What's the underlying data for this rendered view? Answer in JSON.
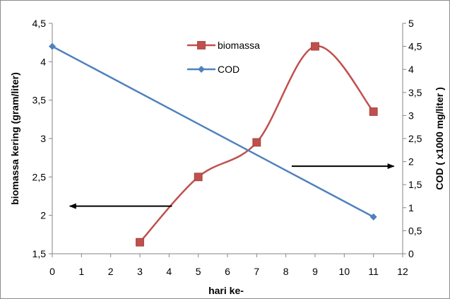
{
  "chart_data": {
    "type": "line",
    "xlabel": "hari ke-",
    "ylabel_left": "biomassa kering (gram/liter)",
    "ylabel_right": "COD ( x1000 mg/liter )",
    "x_ticks": [
      "0",
      "1",
      "2",
      "3",
      "4",
      "5",
      "6",
      "7",
      "8",
      "9",
      "10",
      "11",
      "12"
    ],
    "left_ticks": [
      "1,5",
      "2",
      "2,5",
      "3",
      "3,5",
      "4",
      "4,5"
    ],
    "right_ticks": [
      "0",
      "0,5",
      "1",
      "1,5",
      "2",
      "2,5",
      "3",
      "3,5",
      "4",
      "4,5",
      "5"
    ],
    "xlim": [
      0,
      12
    ],
    "ylim_left": [
      1.5,
      4.5
    ],
    "ylim_right": [
      0,
      5
    ],
    "legend_position": "top-center",
    "series": [
      {
        "name": "biomassa",
        "axis": "left",
        "color": "#c0504d",
        "marker": "square",
        "smooth": true,
        "x": [
          3,
          5,
          7,
          9,
          11
        ],
        "y": [
          1.65,
          2.5,
          2.95,
          4.2,
          3.35
        ]
      },
      {
        "name": "COD",
        "axis": "right",
        "color": "#4f81bd",
        "marker": "diamond",
        "smooth": false,
        "x": [
          0,
          11
        ],
        "y": [
          4.5,
          0.8
        ]
      }
    ],
    "arrows": [
      {
        "direction": "left",
        "axis": "left",
        "y": 2.12,
        "x_from": 4.1,
        "x_to": 0.6
      },
      {
        "direction": "right",
        "axis": "right",
        "y": 1.9,
        "x_from": 8.2,
        "x_to": 11.7
      }
    ]
  }
}
